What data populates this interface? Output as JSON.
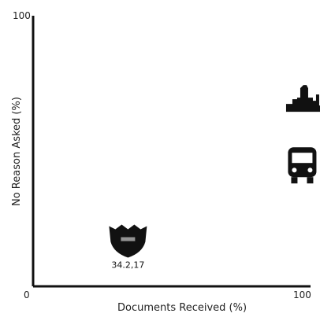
{
  "chart_data": {
    "type": "scatter",
    "title": "",
    "xlabel": "Documents Received (%)",
    "ylabel": "No Reason Asked (%)",
    "xlim": [
      0,
      100
    ],
    "ylim": [
      0,
      100
    ],
    "x_ticks": [
      "0",
      "100"
    ],
    "y_ticks": [
      "100"
    ],
    "grid": false,
    "point_color": "#111111",
    "points": [
      {
        "x": 34.2,
        "y": 17,
        "label": "34.2,17",
        "icon": "shield-icon"
      },
      {
        "x": 97,
        "y": 45,
        "label": "",
        "icon": "bus-icon"
      },
      {
        "x": 98,
        "y": 68,
        "label": "",
        "icon": "city-skyline-icon"
      }
    ]
  }
}
